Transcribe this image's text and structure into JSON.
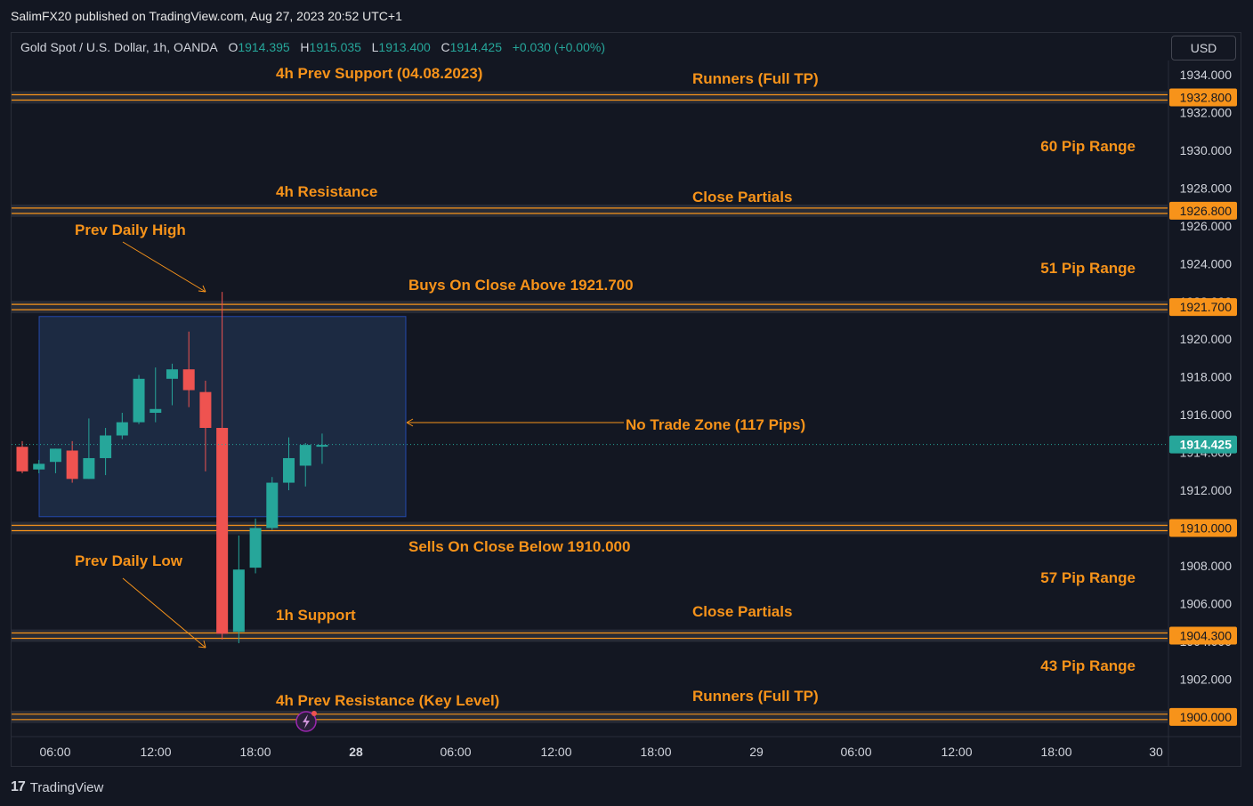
{
  "publisher": "SalimFX20 published on TradingView.com, Aug 27, 2023 20:52 UTC+1",
  "symbol": {
    "name": "Gold Spot / U.S. Dollar, 1h, OANDA",
    "o_label": "O",
    "o": "1914.395",
    "h_label": "H",
    "h": "1915.035",
    "l_label": "L",
    "l": "1913.400",
    "c_label": "C",
    "c": "1914.425",
    "change": "+0.030 (+0.00%)"
  },
  "currency_button": "USD",
  "footer": {
    "brand": "TradingView",
    "logo": "17"
  },
  "colors": {
    "background": "#131722",
    "up": "#26a69a",
    "down": "#ef5350",
    "level_line": "#f7931a",
    "annotation": "#f7931a",
    "zone_fill": "#1c2b45",
    "zone_border": "#2962ff"
  },
  "chart_data": {
    "type": "candlestick",
    "symbol": "XAUUSD",
    "timeframe": "1h",
    "ylim": [
      1898.4,
      1935.5
    ],
    "x_ticks": [
      "06:00",
      "12:00",
      "18:00",
      "28",
      "06:00",
      "12:00",
      "18:00",
      "29",
      "06:00",
      "12:00",
      "18:00",
      "30"
    ],
    "y_ticks": [
      "1934.000",
      "1932.000",
      "1930.000",
      "1928.000",
      "1926.000",
      "1924.000",
      "1922.000",
      "1920.000",
      "1918.000",
      "1916.000",
      "1914.000",
      "1912.000",
      "1910.000",
      "1908.000",
      "1906.000",
      "1904.000",
      "1902.000",
      "1900.000"
    ],
    "candles": [
      {
        "o": 1914.3,
        "h": 1914.6,
        "l": 1912.9,
        "c": 1913.0
      },
      {
        "o": 1913.1,
        "h": 1913.6,
        "l": 1912.9,
        "c": 1913.4
      },
      {
        "o": 1913.5,
        "h": 1914.2,
        "l": 1912.9,
        "c": 1914.2
      },
      {
        "o": 1914.1,
        "h": 1914.6,
        "l": 1912.4,
        "c": 1912.6
      },
      {
        "o": 1912.6,
        "h": 1915.8,
        "l": 1912.6,
        "c": 1913.7
      },
      {
        "o": 1913.7,
        "h": 1915.3,
        "l": 1912.8,
        "c": 1914.9
      },
      {
        "o": 1914.9,
        "h": 1916.1,
        "l": 1914.7,
        "c": 1915.6
      },
      {
        "o": 1915.6,
        "h": 1918.1,
        "l": 1915.5,
        "c": 1917.9
      },
      {
        "o": 1916.1,
        "h": 1918.5,
        "l": 1915.6,
        "c": 1916.3
      },
      {
        "o": 1917.9,
        "h": 1918.7,
        "l": 1916.5,
        "c": 1918.4
      },
      {
        "o": 1918.4,
        "h": 1920.4,
        "l": 1916.4,
        "c": 1917.3
      },
      {
        "o": 1917.2,
        "h": 1917.8,
        "l": 1913.0,
        "c": 1915.3
      },
      {
        "o": 1915.3,
        "h": 1922.5,
        "l": 1904.1,
        "c": 1904.4
      },
      {
        "o": 1904.5,
        "h": 1909.6,
        "l": 1903.9,
        "c": 1907.8
      },
      {
        "o": 1907.9,
        "h": 1910.5,
        "l": 1907.6,
        "c": 1910.0
      },
      {
        "o": 1910.0,
        "h": 1912.7,
        "l": 1909.9,
        "c": 1912.4
      },
      {
        "o": 1912.4,
        "h": 1914.8,
        "l": 1912.0,
        "c": 1913.7
      },
      {
        "o": 1913.3,
        "h": 1914.5,
        "l": 1912.2,
        "c": 1914.4
      },
      {
        "o": 1914.4,
        "h": 1915.0,
        "l": 1913.4,
        "c": 1914.4
      }
    ],
    "last_price": "1914.425",
    "levels": [
      {
        "price": 1932.8,
        "label": "1932.800"
      },
      {
        "price": 1926.8,
        "label": "1926.800"
      },
      {
        "price": 1921.7,
        "label": "1921.700"
      },
      {
        "price": 1910.0,
        "label": "1910.000"
      },
      {
        "price": 1904.3,
        "label": "1904.300"
      },
      {
        "price": 1900.0,
        "label": "1900.000"
      }
    ],
    "zone": {
      "top": 1921.2,
      "bottom": 1910.6
    },
    "annotations": [
      "4h Prev Support (04.08.2023)",
      "Runners (Full TP)",
      "60 Pip Range",
      "4h Resistance",
      "Close Partials",
      "Prev Daily High",
      "51 Pip Range",
      "Buys On Close Above 1921.700",
      "No Trade Zone (117 Pips)",
      "Sells On Close Below 1910.000",
      "Prev Daily Low",
      "57 Pip Range",
      "1h Support",
      "Close Partials",
      "43 Pip Range",
      "4h Prev Resistance (Key Level)",
      "Runners (Full TP)"
    ]
  }
}
